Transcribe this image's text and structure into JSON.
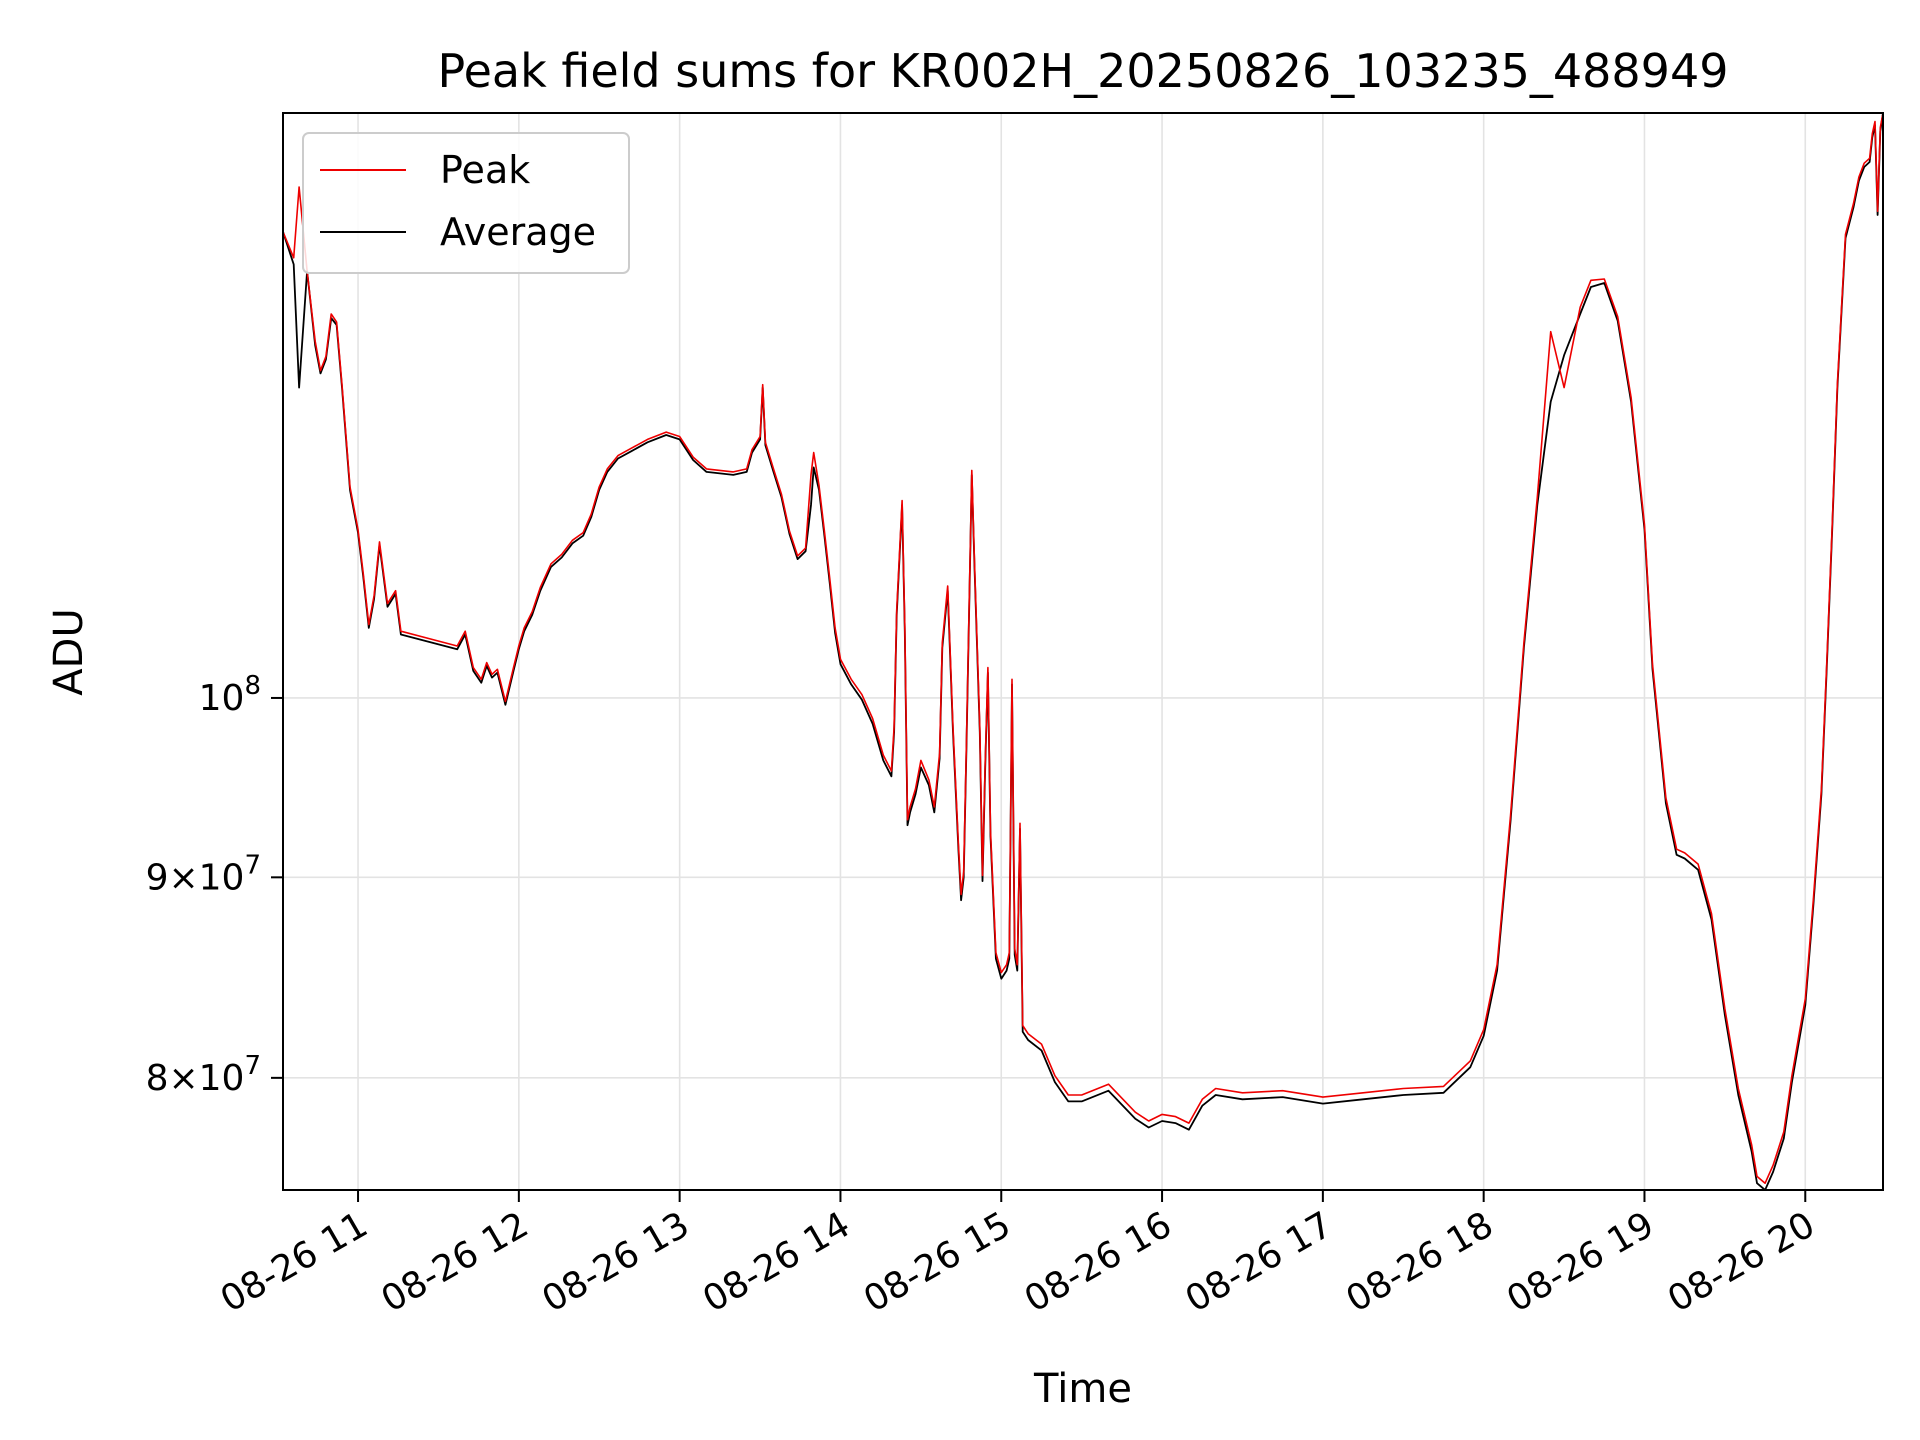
{
  "chart_data": {
    "type": "line",
    "title": "Peak field sums for KR002H_20250826_103235_488949",
    "xlabel": "Time",
    "ylabel": "ADU",
    "yscale": "log",
    "xlim": [
      "2025-08-26T10:32",
      "2025-08-26T20:29"
    ],
    "ylim": [
      74900000,
      141000000
    ],
    "grid": true,
    "legend": "upper-left",
    "x_ticks": [
      {
        "t": "2025-08-26T11:00",
        "label": "08-26 11"
      },
      {
        "t": "2025-08-26T12:00",
        "label": "08-26 12"
      },
      {
        "t": "2025-08-26T13:00",
        "label": "08-26 13"
      },
      {
        "t": "2025-08-26T14:00",
        "label": "08-26 14"
      },
      {
        "t": "2025-08-26T15:00",
        "label": "08-26 15"
      },
      {
        "t": "2025-08-26T16:00",
        "label": "08-26 16"
      },
      {
        "t": "2025-08-26T17:00",
        "label": "08-26 17"
      },
      {
        "t": "2025-08-26T18:00",
        "label": "08-26 18"
      },
      {
        "t": "2025-08-26T19:00",
        "label": "08-26 19"
      },
      {
        "t": "2025-08-26T20:00",
        "label": "08-26 20"
      }
    ],
    "y_ticks": [
      {
        "value": 80000000,
        "base": "8",
        "mult": "×",
        "pow": "10",
        "exp": "7"
      },
      {
        "value": 90000000,
        "base": "9",
        "mult": "×",
        "pow": "10",
        "exp": "7"
      },
      {
        "value": 100000000,
        "base": "",
        "mult": "",
        "pow": "10",
        "exp": "8"
      }
    ],
    "series": [
      {
        "name": "Average",
        "color": "#000000",
        "x": [
          "2025-08-26T10:32",
          "2025-08-26T10:36",
          "2025-08-26T10:38",
          "2025-08-26T10:41",
          "2025-08-26T10:44",
          "2025-08-26T10:46",
          "2025-08-26T10:48",
          "2025-08-26T10:50",
          "2025-08-26T10:52",
          "2025-08-26T10:54",
          "2025-08-26T10:57",
          "2025-08-26T11:00",
          "2025-08-26T11:02",
          "2025-08-26T11:04",
          "2025-08-26T11:06",
          "2025-08-26T11:08",
          "2025-08-26T11:11",
          "2025-08-26T11:14",
          "2025-08-26T11:16",
          "2025-08-26T11:37",
          "2025-08-26T11:40",
          "2025-08-26T11:43",
          "2025-08-26T11:46",
          "2025-08-26T11:48",
          "2025-08-26T11:50",
          "2025-08-26T11:52",
          "2025-08-26T11:55",
          "2025-08-26T11:58",
          "2025-08-26T12:00",
          "2025-08-26T12:02",
          "2025-08-26T12:05",
          "2025-08-26T12:08",
          "2025-08-26T12:12",
          "2025-08-26T12:16",
          "2025-08-26T12:20",
          "2025-08-26T12:24",
          "2025-08-26T12:27",
          "2025-08-26T12:30",
          "2025-08-26T12:33",
          "2025-08-26T12:37",
          "2025-08-26T12:42",
          "2025-08-26T12:48",
          "2025-08-26T12:55",
          "2025-08-26T13:00",
          "2025-08-26T13:05",
          "2025-08-26T13:10",
          "2025-08-26T13:20",
          "2025-08-26T13:25",
          "2025-08-26T13:27",
          "2025-08-26T13:30",
          "2025-08-26T13:31",
          "2025-08-26T13:32",
          "2025-08-26T13:35",
          "2025-08-26T13:38",
          "2025-08-26T13:41",
          "2025-08-26T13:44",
          "2025-08-26T13:47",
          "2025-08-26T13:49",
          "2025-08-26T13:50",
          "2025-08-26T13:52",
          "2025-08-26T13:54",
          "2025-08-26T13:56",
          "2025-08-26T13:58",
          "2025-08-26T14:00",
          "2025-08-26T14:04",
          "2025-08-26T14:08",
          "2025-08-26T14:12",
          "2025-08-26T14:16",
          "2025-08-26T14:19",
          "2025-08-26T14:20",
          "2025-08-26T14:21",
          "2025-08-26T14:23",
          "2025-08-26T14:24",
          "2025-08-26T14:25",
          "2025-08-26T14:26",
          "2025-08-26T14:28",
          "2025-08-26T14:30",
          "2025-08-26T14:33",
          "2025-08-26T14:35",
          "2025-08-26T14:37",
          "2025-08-26T14:38",
          "2025-08-26T14:40",
          "2025-08-26T14:42",
          "2025-08-26T14:44",
          "2025-08-26T14:45",
          "2025-08-26T14:46",
          "2025-08-26T14:47",
          "2025-08-26T14:49",
          "2025-08-26T14:50",
          "2025-08-26T14:52",
          "2025-08-26T14:53",
          "2025-08-26T14:54",
          "2025-08-26T14:55",
          "2025-08-26T14:56",
          "2025-08-26T14:58",
          "2025-08-26T15:00",
          "2025-08-26T15:02",
          "2025-08-26T15:03",
          "2025-08-26T15:04",
          "2025-08-26T15:05",
          "2025-08-26T15:06",
          "2025-08-26T15:07",
          "2025-08-26T15:08",
          "2025-08-26T15:10",
          "2025-08-26T15:15",
          "2025-08-26T15:20",
          "2025-08-26T15:25",
          "2025-08-26T15:30",
          "2025-08-26T15:40",
          "2025-08-26T15:50",
          "2025-08-26T15:55",
          "2025-08-26T16:00",
          "2025-08-26T16:05",
          "2025-08-26T16:10",
          "2025-08-26T16:15",
          "2025-08-26T16:20",
          "2025-08-26T16:30",
          "2025-08-26T16:45",
          "2025-08-26T17:00",
          "2025-08-26T17:15",
          "2025-08-26T17:30",
          "2025-08-26T17:45",
          "2025-08-26T17:55",
          "2025-08-26T18:00",
          "2025-08-26T18:05",
          "2025-08-26T18:10",
          "2025-08-26T18:15",
          "2025-08-26T18:20",
          "2025-08-26T18:25",
          "2025-08-26T18:30",
          "2025-08-26T18:36",
          "2025-08-26T18:40",
          "2025-08-26T18:45",
          "2025-08-26T18:50",
          "2025-08-26T18:55",
          "2025-08-26T19:00",
          "2025-08-26T19:03",
          "2025-08-26T19:08",
          "2025-08-26T19:12",
          "2025-08-26T19:15",
          "2025-08-26T19:20",
          "2025-08-26T19:25",
          "2025-08-26T19:30",
          "2025-08-26T19:35",
          "2025-08-26T19:40",
          "2025-08-26T19:42",
          "2025-08-26T19:45",
          "2025-08-26T19:48",
          "2025-08-26T19:52",
          "2025-08-26T19:55",
          "2025-08-26T20:00",
          "2025-08-26T20:03",
          "2025-08-26T20:06",
          "2025-08-26T20:08",
          "2025-08-26T20:10",
          "2025-08-26T20:12",
          "2025-08-26T20:15",
          "2025-08-26T20:18",
          "2025-08-26T20:20",
          "2025-08-26T20:22",
          "2025-08-26T20:24",
          "2025-08-26T20:25",
          "2025-08-26T20:26",
          "2025-08-26T20:27",
          "2025-08-26T20:28",
          "2025-08-26T20:29"
        ],
        "y": [
          131500000,
          129000000,
          120000000,
          128500000,
          123000000,
          121000000,
          122000000,
          125000000,
          124500000,
          120000000,
          113000000,
          110200000,
          107300000,
          104200000,
          106000000,
          109400000,
          105500000,
          106300000,
          103800000,
          102900000,
          103800000,
          101600000,
          100900000,
          101900000,
          101200000,
          101500000,
          99600000,
          101600000,
          102900000,
          104000000,
          105000000,
          106500000,
          108000000,
          108600000,
          109500000,
          110000000,
          111200000,
          113000000,
          114200000,
          115100000,
          115600000,
          116200000,
          116700000,
          116400000,
          115000000,
          114200000,
          114000000,
          114200000,
          115500000,
          116400000,
          120000000,
          116000000,
          114200000,
          112500000,
          110100000,
          108500000,
          109000000,
          112000000,
          114500000,
          113000000,
          110000000,
          107000000,
          103900000,
          102000000,
          100800000,
          99900000,
          98500000,
          96400000,
          95500000,
          98000000,
          105000000,
          112000000,
          104000000,
          92800000,
          93500000,
          94500000,
          96000000,
          95000000,
          93500000,
          96500000,
          103000000,
          106500000,
          98000000,
          91500000,
          88800000,
          90000000,
          97000000,
          114000000,
          108000000,
          98000000,
          89800000,
          96000000,
          101500000,
          92200000,
          85800000,
          84800000,
          85200000,
          85800000,
          100800000,
          86000000,
          85200000,
          92600000,
          82200000,
          81800000,
          81300000,
          79800000,
          78900000,
          78900000,
          79400000,
          78100000,
          77700000,
          78000000,
          77900000,
          77600000,
          78700000,
          79200000,
          79000000,
          79100000,
          78800000,
          79000000,
          79200000,
          79300000,
          80500000,
          82000000,
          85200000,
          93000000,
          103000000,
          112000000,
          119000000,
          122300000,
          125300000,
          127300000,
          127600000,
          124800000,
          119000000,
          110400000,
          101700000,
          94000000,
          91200000,
          91000000,
          90400000,
          87800000,
          83000000,
          79200000,
          76600000,
          75200000,
          74900000,
          75700000,
          77200000,
          79800000,
          83500000,
          88500000,
          94500000,
          101700000,
          110200000,
          120000000,
          131000000,
          133400000,
          135500000,
          136600000,
          137000000,
          139000000,
          140000000,
          132800000,
          139500000,
          141000000
        ]
      },
      {
        "name": "Peak",
        "color": "#ee0000",
        "x": [
          "2025-08-26T10:32",
          "2025-08-26T10:36",
          "2025-08-26T10:38",
          "2025-08-26T10:41",
          "2025-08-26T10:44",
          "2025-08-26T10:46",
          "2025-08-26T10:48",
          "2025-08-26T10:50",
          "2025-08-26T10:52",
          "2025-08-26T10:54",
          "2025-08-26T10:57",
          "2025-08-26T11:00",
          "2025-08-26T11:02",
          "2025-08-26T11:04",
          "2025-08-26T11:06",
          "2025-08-26T11:08",
          "2025-08-26T11:11",
          "2025-08-26T11:14",
          "2025-08-26T11:16",
          "2025-08-26T11:37",
          "2025-08-26T11:40",
          "2025-08-26T11:43",
          "2025-08-26T11:46",
          "2025-08-26T11:48",
          "2025-08-26T11:50",
          "2025-08-26T11:52",
          "2025-08-26T11:55",
          "2025-08-26T11:58",
          "2025-08-26T12:00",
          "2025-08-26T12:02",
          "2025-08-26T12:05",
          "2025-08-26T12:08",
          "2025-08-26T12:12",
          "2025-08-26T12:16",
          "2025-08-26T12:20",
          "2025-08-26T12:24",
          "2025-08-26T12:27",
          "2025-08-26T12:30",
          "2025-08-26T12:33",
          "2025-08-26T12:37",
          "2025-08-26T12:42",
          "2025-08-26T12:48",
          "2025-08-26T12:55",
          "2025-08-26T13:00",
          "2025-08-26T13:05",
          "2025-08-26T13:10",
          "2025-08-26T13:20",
          "2025-08-26T13:25",
          "2025-08-26T13:27",
          "2025-08-26T13:30",
          "2025-08-26T13:31",
          "2025-08-26T13:32",
          "2025-08-26T13:35",
          "2025-08-26T13:38",
          "2025-08-26T13:41",
          "2025-08-26T13:44",
          "2025-08-26T13:47",
          "2025-08-26T13:49",
          "2025-08-26T13:50",
          "2025-08-26T13:52",
          "2025-08-26T13:54",
          "2025-08-26T13:56",
          "2025-08-26T13:58",
          "2025-08-26T14:00",
          "2025-08-26T14:04",
          "2025-08-26T14:08",
          "2025-08-26T14:12",
          "2025-08-26T14:16",
          "2025-08-26T14:19",
          "2025-08-26T14:20",
          "2025-08-26T14:21",
          "2025-08-26T14:23",
          "2025-08-26T14:24",
          "2025-08-26T14:25",
          "2025-08-26T14:26",
          "2025-08-26T14:28",
          "2025-08-26T14:30",
          "2025-08-26T14:33",
          "2025-08-26T14:35",
          "2025-08-26T14:37",
          "2025-08-26T14:38",
          "2025-08-26T14:40",
          "2025-08-26T14:42",
          "2025-08-26T14:44",
          "2025-08-26T14:45",
          "2025-08-26T14:46",
          "2025-08-26T14:47",
          "2025-08-26T14:49",
          "2025-08-26T14:50",
          "2025-08-26T14:52",
          "2025-08-26T14:53",
          "2025-08-26T14:54",
          "2025-08-26T14:55",
          "2025-08-26T14:56",
          "2025-08-26T14:58",
          "2025-08-26T15:00",
          "2025-08-26T15:02",
          "2025-08-26T15:03",
          "2025-08-26T15:04",
          "2025-08-26T15:05",
          "2025-08-26T15:06",
          "2025-08-26T15:07",
          "2025-08-26T15:08",
          "2025-08-26T15:10",
          "2025-08-26T15:15",
          "2025-08-26T15:20",
          "2025-08-26T15:25",
          "2025-08-26T15:30",
          "2025-08-26T15:40",
          "2025-08-26T15:50",
          "2025-08-26T15:55",
          "2025-08-26T16:00",
          "2025-08-26T16:05",
          "2025-08-26T16:10",
          "2025-08-26T16:15",
          "2025-08-26T16:20",
          "2025-08-26T16:30",
          "2025-08-26T16:45",
          "2025-08-26T17:00",
          "2025-08-26T17:15",
          "2025-08-26T17:30",
          "2025-08-26T17:45",
          "2025-08-26T17:55",
          "2025-08-26T18:00",
          "2025-08-26T18:05",
          "2025-08-26T18:10",
          "2025-08-26T18:15",
          "2025-08-26T18:20",
          "2025-08-26T18:25",
          "2025-08-26T18:30",
          "2025-08-26T18:36",
          "2025-08-26T18:40",
          "2025-08-26T18:45",
          "2025-08-26T18:50",
          "2025-08-26T18:55",
          "2025-08-26T19:00",
          "2025-08-26T19:03",
          "2025-08-26T19:08",
          "2025-08-26T19:12",
          "2025-08-26T19:15",
          "2025-08-26T19:20",
          "2025-08-26T19:25",
          "2025-08-26T19:30",
          "2025-08-26T19:35",
          "2025-08-26T19:40",
          "2025-08-26T19:42",
          "2025-08-26T19:45",
          "2025-08-26T19:48",
          "2025-08-26T19:52",
          "2025-08-26T19:55",
          "2025-08-26T20:00",
          "2025-08-26T20:03",
          "2025-08-26T20:06",
          "2025-08-26T20:08",
          "2025-08-26T20:10",
          "2025-08-26T20:12",
          "2025-08-26T20:15",
          "2025-08-26T20:18",
          "2025-08-26T20:20",
          "2025-08-26T20:22",
          "2025-08-26T20:24",
          "2025-08-26T20:25",
          "2025-08-26T20:26",
          "2025-08-26T20:27",
          "2025-08-26T20:28",
          "2025-08-26T20:29"
        ],
        "y": [
          131500000,
          129500000,
          135000000,
          128500000,
          123300000,
          121200000,
          122200000,
          125300000,
          124700000,
          120200000,
          113200000,
          110400000,
          107500000,
          104400000,
          106200000,
          109600000,
          105700000,
          106500000,
          104000000,
          103100000,
          104000000,
          101800000,
          101100000,
          102100000,
          101400000,
          101700000,
          99800000,
          101800000,
          103100000,
          104200000,
          105200000,
          106700000,
          108200000,
          108800000,
          109700000,
          110200000,
          111400000,
          113200000,
          114400000,
          115300000,
          115800000,
          116400000,
          116900000,
          116600000,
          115200000,
          114400000,
          114200000,
          114400000,
          115700000,
          116600000,
          120200000,
          116200000,
          114400000,
          112700000,
          110300000,
          108700000,
          109200000,
          114000000,
          115500000,
          113300000,
          110300000,
          107300000,
          104200000,
          102300000,
          101100000,
          100200000,
          98800000,
          96700000,
          95800000,
          98300000,
          105300000,
          112300000,
          104300000,
          93100000,
          93800000,
          94800000,
          96400000,
          95300000,
          93800000,
          96800000,
          103300000,
          106800000,
          98300000,
          91800000,
          89100000,
          90300000,
          97300000,
          114300000,
          108300000,
          98300000,
          90100000,
          96300000,
          101800000,
          92500000,
          86100000,
          85100000,
          85500000,
          86100000,
          101100000,
          86300000,
          85500000,
          92900000,
          82500000,
          82100000,
          81600000,
          80100000,
          79200000,
          79200000,
          79700000,
          78400000,
          78000000,
          78300000,
          78200000,
          77900000,
          79000000,
          79500000,
          79300000,
          79400000,
          79100000,
          79300000,
          79500000,
          79600000,
          80800000,
          82300000,
          85500000,
          93300000,
          103300000,
          112500000,
          124000000,
          120000000,
          125800000,
          127800000,
          127900000,
          125100000,
          119300000,
          110700000,
          102000000,
          94300000,
          91500000,
          91300000,
          90700000,
          88100000,
          83300000,
          79500000,
          76900000,
          75500000,
          75200000,
          76000000,
          77500000,
          80100000,
          83800000,
          88800000,
          94800000,
          102000000,
          110500000,
          120300000,
          131300000,
          133700000,
          135800000,
          136900000,
          137300000,
          139300000,
          140300000,
          133100000,
          139800000,
          141000000
        ]
      }
    ]
  }
}
